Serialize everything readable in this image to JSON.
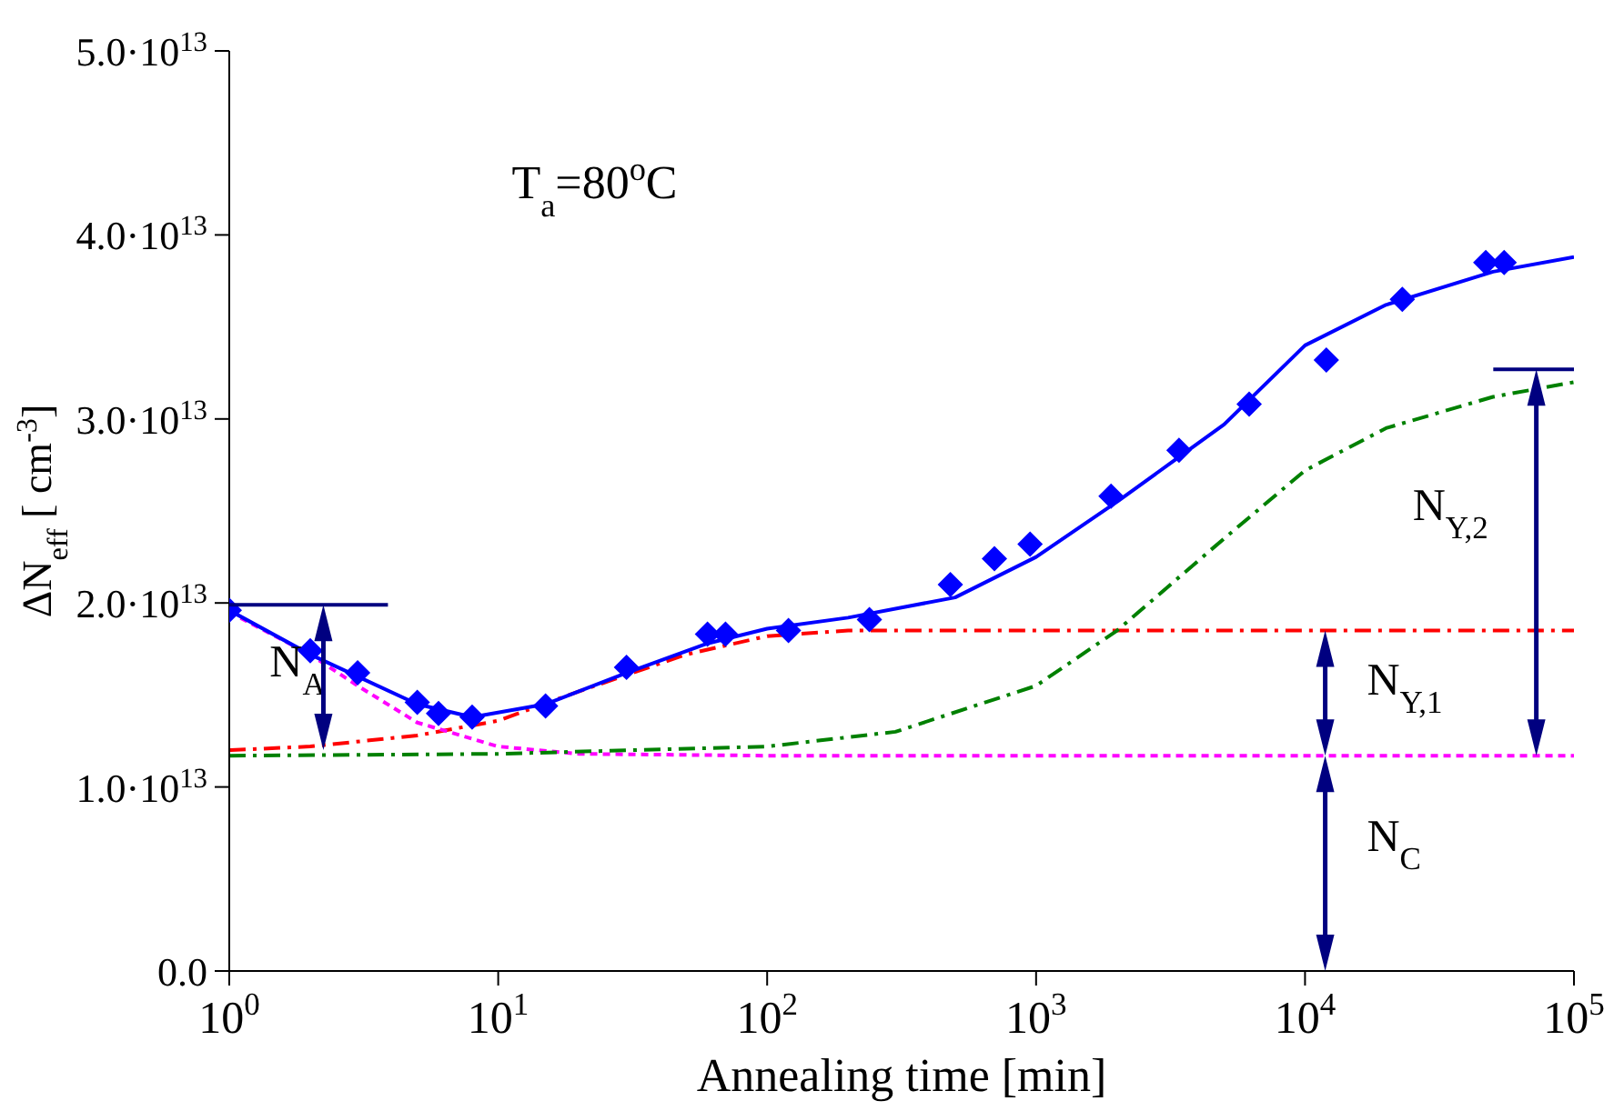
{
  "chart_data": {
    "type": "line",
    "xlabel": "Annealing time [min]",
    "ylabel": "ΔN$_{eff}$ [ cm$^{-3}$]",
    "log": "x",
    "xlim": [
      1,
      100000
    ],
    "xticks": [
      {
        "value": 1,
        "label": "10$^{0}$"
      },
      {
        "value": 10,
        "label": "10$^{1}$"
      },
      {
        "value": 100,
        "label": "10$^{2}$"
      },
      {
        "value": 1000,
        "label": "10$^{3}$"
      },
      {
        "value": 10000,
        "label": "10$^{4}$"
      },
      {
        "value": 100000,
        "label": "10$^{5}$"
      }
    ],
    "ylim": [
      0,
      50000000000000.0
    ],
    "yticks": [
      {
        "value": 0,
        "label": "0.0"
      },
      {
        "value": 10000000000000.0,
        "label": "1.0·10$^{13}$"
      },
      {
        "value": 20000000000000.0,
        "label": "2.0·10$^{13}$"
      },
      {
        "value": 30000000000000.0,
        "label": "3.0·10$^{13}$"
      },
      {
        "value": 40000000000000.0,
        "label": "4.0·10$^{13}$"
      },
      {
        "value": 50000000000000.0,
        "label": "5.0·10$^{13}$"
      }
    ],
    "series": [
      {
        "color": "#ff0000",
        "line_style": "dashed",
        "x": [
          1,
          2,
          5,
          10,
          20,
          50,
          100,
          200,
          1000,
          100000
        ],
        "values": [
          12000000000000.0,
          12200000000000.0,
          12800000000000.0,
          13600000000000.0,
          15200000000000.0,
          17200000000000.0,
          18200000000000.0,
          18500000000000.0,
          18500000000000.0,
          18500000000000.0
        ]
      },
      {
        "color": "#ff00ff",
        "line_style": "dotted",
        "x": [
          1,
          2,
          3,
          5,
          10,
          20,
          100,
          100000
        ],
        "values": [
          19500000000000.0,
          17200000000000.0,
          15500000000000.0,
          13500000000000.0,
          12200000000000.0,
          11800000000000.0,
          11700000000000.0,
          11700000000000.0
        ]
      },
      {
        "color": "#008000",
        "line_style": "dashed",
        "x": [
          1,
          10,
          100,
          300,
          1000,
          2000,
          5000,
          10000,
          20000,
          50000,
          100000
        ],
        "values": [
          11700000000000.0,
          11800000000000.0,
          12200000000000.0,
          13000000000000.0,
          15500000000000.0,
          18500000000000.0,
          23500000000000.0,
          27200000000000.0,
          29500000000000.0,
          31200000000000.0,
          32000000000000.0
        ]
      },
      {
        "color": "#0000ff",
        "line_style": "solid",
        "x": [
          1,
          2,
          5,
          8,
          15,
          30,
          60,
          100,
          200,
          500,
          1000,
          2000,
          5000,
          10000,
          20000,
          50000,
          100000
        ],
        "values": [
          19600000000000.0,
          17200000000000.0,
          14500000000000.0,
          13800000000000.0,
          14500000000000.0,
          16200000000000.0,
          17800000000000.0,
          18600000000000.0,
          19200000000000.0,
          20300000000000.0,
          22500000000000.0,
          25500000000000.0,
          29700000000000.0,
          34000000000000.0,
          36200000000000.0,
          38000000000000.0,
          38800000000000.0
        ]
      },
      {
        "type": "scatter",
        "color": "#0000ff",
        "marker": "diamond",
        "x": [
          1,
          2,
          3,
          5,
          6,
          8,
          15,
          30,
          60,
          70,
          120,
          240,
          480,
          700,
          950,
          1900,
          3400,
          6200,
          12000,
          23000,
          47000,
          55000
        ],
        "values": [
          19600000000000.0,
          17400000000000.0,
          16200000000000.0,
          14600000000000.0,
          14000000000000.0,
          13800000000000.0,
          14400000000000.0,
          16500000000000.0,
          18300000000000.0,
          18300000000000.0,
          18500000000000.0,
          19100000000000.0,
          21000000000000.0,
          22400000000000.0,
          23200000000000.0,
          25800000000000.0,
          28300000000000.0,
          30800000000000.0,
          33200000000000.0,
          36500000000000.0,
          38500000000000.0,
          38500000000000.0
        ]
      }
    ],
    "annotations": [
      "T$_{a}$=80$^{o}$C",
      "N$_{A}$",
      "N$_{Y,1}$",
      "N$_{Y,2}$",
      "N$_{C}$"
    ]
  }
}
